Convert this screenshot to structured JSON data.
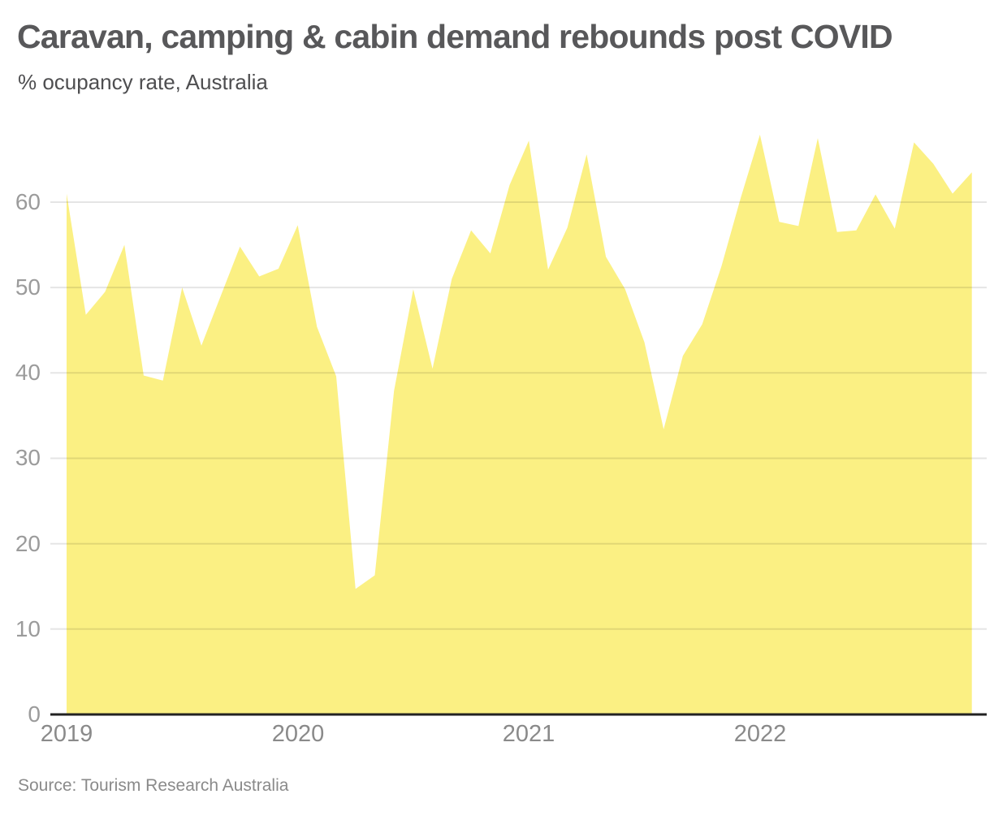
{
  "header": {
    "title": "Caravan, camping & cabin demand rebounds post COVID",
    "subtitle": "% ocupancy rate, Australia"
  },
  "footer": {
    "source": "Source: Tourism Research Australia"
  },
  "colors": {
    "background": "#FFFFFF",
    "area_fill": "#FBF083",
    "gridline": "#E6E6E6",
    "axis_line": "#222222",
    "title_text": "#58585A",
    "subtitle_text": "#4E4E50",
    "y_tick_text": "#9B9B9B",
    "x_tick_text": "#8A8A8A",
    "source_text": "#8A8A8A"
  },
  "chart_data": {
    "type": "area",
    "title": "Caravan, camping & cabin demand rebounds post COVID",
    "subtitle": "% ocupancy rate, Australia",
    "series_name": "% occupancy rate, Australia",
    "x_frequency": "monthly",
    "x": [
      "2019-01",
      "2019-02",
      "2019-03",
      "2019-04",
      "2019-05",
      "2019-06",
      "2019-07",
      "2019-08",
      "2019-09",
      "2019-10",
      "2019-11",
      "2019-12",
      "2020-01",
      "2020-02",
      "2020-03",
      "2020-04",
      "2020-05",
      "2020-06",
      "2020-07",
      "2020-08",
      "2020-09",
      "2020-10",
      "2020-11",
      "2020-12",
      "2021-01",
      "2021-02",
      "2021-03",
      "2021-04",
      "2021-05",
      "2021-06",
      "2021-07",
      "2021-08",
      "2021-09",
      "2021-10",
      "2021-11",
      "2021-12",
      "2022-01",
      "2022-02",
      "2022-03",
      "2022-04",
      "2022-05",
      "2022-06",
      "2022-07",
      "2022-08",
      "2022-09",
      "2022-10",
      "2022-11",
      "2022-12"
    ],
    "values": [
      61.0,
      46.8,
      49.5,
      55.0,
      39.7,
      39.1,
      50.0,
      43.2,
      49.0,
      54.8,
      51.3,
      52.2,
      57.3,
      45.4,
      39.6,
      14.7,
      16.3,
      37.9,
      49.8,
      40.5,
      51.0,
      56.7,
      54.0,
      62.0,
      67.2,
      52.1,
      57.0,
      65.6,
      53.6,
      49.8,
      43.6,
      33.4,
      42.0,
      45.7,
      52.5,
      60.5,
      67.9,
      57.7,
      57.2,
      67.5,
      56.5,
      56.7,
      60.9,
      56.9,
      67.0,
      64.5,
      61.0,
      63.5
    ],
    "x_tick_labels": [
      "2019",
      "2020",
      "2021",
      "2022"
    ],
    "y_ticks": [
      0,
      10,
      20,
      30,
      40,
      50,
      60
    ],
    "ylim": [
      0,
      69
    ],
    "grid": "horizontal",
    "legend": "none",
    "ylabel": "",
    "xlabel": ""
  }
}
